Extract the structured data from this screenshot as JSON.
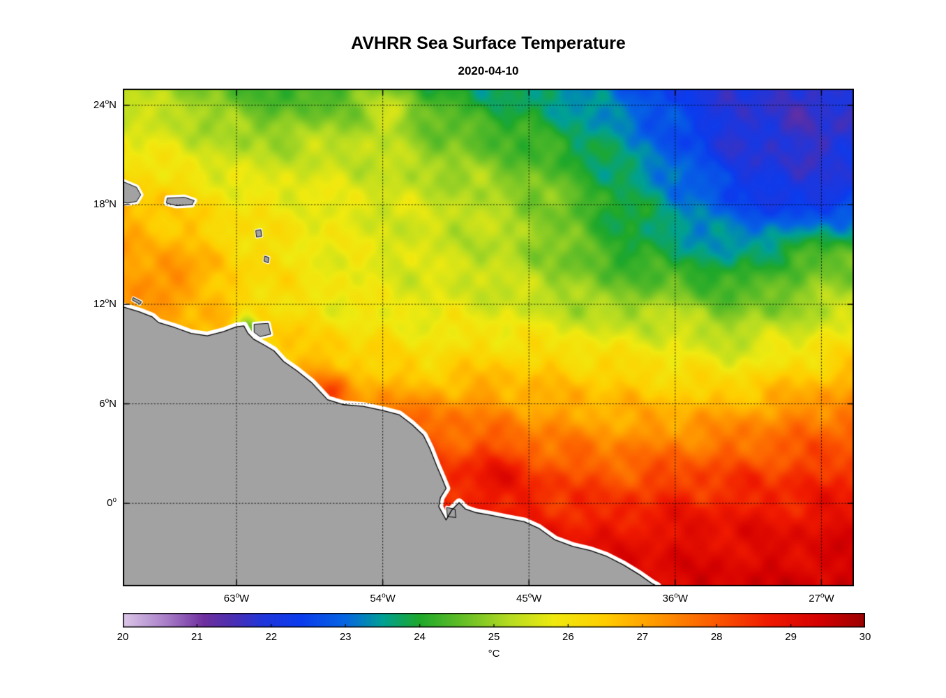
{
  "title": "AVHRR Sea Surface Temperature",
  "date": "2020-04-10",
  "axes": {
    "x_ticks": [
      {
        "deg": "63",
        "hem": "W",
        "lon": -63
      },
      {
        "deg": "54",
        "hem": "W",
        "lon": -54
      },
      {
        "deg": "45",
        "hem": "W",
        "lon": -45
      },
      {
        "deg": "36",
        "hem": "W",
        "lon": -36
      },
      {
        "deg": "27",
        "hem": "W",
        "lon": -27
      }
    ],
    "y_ticks": [
      {
        "deg": "24",
        "hem": "N",
        "lat": 24
      },
      {
        "deg": "18",
        "hem": "N",
        "lat": 18
      },
      {
        "deg": "12",
        "hem": "N",
        "lat": 12
      },
      {
        "deg": "6",
        "hem": "N",
        "lat": 6
      },
      {
        "deg": "0",
        "hem": "",
        "lat": 0
      }
    ]
  },
  "colorbar": {
    "min": 20,
    "max": 30,
    "tick_labels": [
      "20",
      "21",
      "22",
      "23",
      "24",
      "25",
      "26",
      "27",
      "28",
      "29",
      "30"
    ],
    "unit": "°C"
  },
  "chart_data": {
    "type": "heatmap",
    "title": "AVHRR Sea Surface Temperature",
    "subtitle": "2020-04-10",
    "units": "°C",
    "lon_range": [
      -70,
      -25
    ],
    "lat_range": [
      25,
      -5
    ],
    "value_range": [
      20,
      30
    ],
    "grid_lon_lines": [
      -63,
      -54,
      -45,
      -36,
      -27
    ],
    "grid_lat_lines": [
      24,
      18,
      12,
      6,
      0
    ],
    "grid_lons": [
      -70,
      -66.25,
      -62.5,
      -58.75,
      -55,
      -51.25,
      -47.5,
      -43.75,
      -40,
      -36.25,
      -32.5,
      -28.75,
      -25
    ],
    "grid_lats": [
      25,
      21.67,
      18.33,
      15,
      11.67,
      8.33,
      5,
      1.67,
      -1.67,
      -5
    ],
    "grid_values": [
      [
        25.2,
        25.0,
        24.4,
        24.1,
        24.6,
        24.1,
        23.8,
        23.5,
        23.0,
        22.4,
        21.9,
        21.7,
        21.7
      ],
      [
        25.8,
        25.5,
        25.1,
        25.2,
        25.3,
        24.9,
        24.5,
        24.1,
        23.6,
        22.8,
        21.9,
        21.7,
        21.8
      ],
      [
        26.8,
        26.3,
        25.9,
        25.8,
        25.6,
        25.4,
        25.2,
        24.8,
        24.0,
        23.4,
        22.6,
        22.0,
        22.3
      ],
      [
        27.0,
        26.8,
        26.3,
        25.9,
        25.7,
        25.5,
        25.3,
        24.9,
        24.2,
        23.8,
        23.5,
        24.2,
        24.6
      ],
      [
        27.2,
        26.9,
        26.4,
        26.0,
        25.8,
        25.7,
        25.6,
        25.4,
        25.0,
        25.2,
        24.7,
        25.0,
        25.4
      ],
      [
        27.4,
        27.2,
        27.0,
        26.8,
        26.5,
        26.2,
        26.5,
        26.4,
        26.3,
        26.0,
        25.8,
        26.2,
        26.5
      ],
      [
        27.5,
        27.5,
        27.5,
        27.5,
        27.6,
        27.8,
        27.5,
        27.2,
        27.0,
        27.0,
        27.2,
        27.5,
        27.8
      ],
      [
        28.0,
        28.0,
        28.0,
        28.0,
        28.0,
        28.2,
        28.5,
        28.3,
        28.0,
        28.2,
        28.3,
        28.4,
        28.5
      ],
      [
        28.5,
        28.5,
        28.5,
        28.5,
        28.5,
        28.6,
        28.8,
        28.8,
        28.8,
        29.0,
        29.0,
        29.0,
        29.2
      ],
      [
        28.8,
        28.8,
        28.8,
        28.8,
        28.8,
        28.9,
        29.0,
        29.2,
        29.2,
        29.3,
        29.3,
        29.4,
        29.4
      ]
    ],
    "anomalies": [
      {
        "lon": -62.35,
        "lat": 10.55,
        "r": 0.75,
        "d": -2.2
      },
      {
        "lon": -57.2,
        "lat": 6.9,
        "r": 1.1,
        "d": 0.9
      },
      {
        "lon": -47.3,
        "lat": 1.8,
        "r": 1.7,
        "d": 0.5
      },
      {
        "lon": -66.8,
        "lat": 13.7,
        "r": 1.2,
        "d": 0.7
      },
      {
        "lon": -53.3,
        "lat": 23.8,
        "r": 1.4,
        "d": 0.7
      }
    ],
    "colormap": [
      [
        20.0,
        "#DCC9E8"
      ],
      [
        20.6,
        "#A87CC8"
      ],
      [
        21.1,
        "#6E2F9E"
      ],
      [
        21.5,
        "#4A2FB4"
      ],
      [
        21.9,
        "#2036DC"
      ],
      [
        22.4,
        "#0B3CEE"
      ],
      [
        23.0,
        "#0566E2"
      ],
      [
        23.5,
        "#00A096"
      ],
      [
        24.0,
        "#1FA82A"
      ],
      [
        24.7,
        "#74C426"
      ],
      [
        25.2,
        "#B5DC22"
      ],
      [
        25.8,
        "#F0EA10"
      ],
      [
        26.5,
        "#FFCE00"
      ],
      [
        27.2,
        "#FF9800"
      ],
      [
        28.0,
        "#FC5800"
      ],
      [
        28.7,
        "#F01A00"
      ],
      [
        29.4,
        "#D40000"
      ],
      [
        30.0,
        "#9C0000"
      ]
    ],
    "land_color": "#A2A2A2",
    "land_coast": [
      [
        -70,
        11.85
      ],
      [
        -69.0,
        11.55
      ],
      [
        -68.2,
        11.25
      ],
      [
        -67.8,
        10.9
      ],
      [
        -66.8,
        10.6
      ],
      [
        -65.8,
        10.25
      ],
      [
        -64.8,
        10.1
      ],
      [
        -63.8,
        10.35
      ],
      [
        -63.0,
        10.65
      ],
      [
        -62.55,
        10.7
      ],
      [
        -62.3,
        10.25
      ],
      [
        -61.95,
        9.9
      ],
      [
        -61.3,
        9.55
      ],
      [
        -60.7,
        9.2
      ],
      [
        -60.1,
        8.55
      ],
      [
        -59.3,
        8.0
      ],
      [
        -58.4,
        7.3
      ],
      [
        -57.4,
        6.25
      ],
      [
        -56.4,
        5.95
      ],
      [
        -55.2,
        5.85
      ],
      [
        -54.0,
        5.6
      ],
      [
        -53.0,
        5.35
      ],
      [
        -52.2,
        4.75
      ],
      [
        -51.5,
        4.1
      ],
      [
        -51.1,
        3.3
      ],
      [
        -50.7,
        2.3
      ],
      [
        -50.35,
        1.5
      ],
      [
        -50.1,
        0.9
      ],
      [
        -50.45,
        0.35
      ],
      [
        -50.55,
        -0.2
      ],
      [
        -50.1,
        -1.0
      ],
      [
        -49.75,
        -0.4
      ],
      [
        -49.3,
        0.05
      ],
      [
        -48.9,
        -0.35
      ],
      [
        -48.3,
        -0.55
      ],
      [
        -47.4,
        -0.7
      ],
      [
        -46.4,
        -0.9
      ],
      [
        -45.3,
        -1.1
      ],
      [
        -44.4,
        -1.5
      ],
      [
        -43.4,
        -2.2
      ],
      [
        -42.3,
        -2.6
      ],
      [
        -41.2,
        -2.85
      ],
      [
        -40.2,
        -3.2
      ],
      [
        -39.2,
        -3.7
      ],
      [
        -38.2,
        -4.3
      ],
      [
        -37.4,
        -4.85
      ],
      [
        -37.1,
        -5.0
      ]
    ],
    "islands": [
      {
        "name": "hispaniola-east",
        "halo": 8,
        "points": [
          [
            -70,
            19.4
          ],
          [
            -69.15,
            19.05
          ],
          [
            -68.9,
            18.6
          ],
          [
            -69.15,
            18.2
          ],
          [
            -69.7,
            18.1
          ],
          [
            -70,
            18.15
          ]
        ]
      },
      {
        "name": "puerto-rico",
        "halo": 8,
        "points": [
          [
            -67.25,
            18.4
          ],
          [
            -66.2,
            18.45
          ],
          [
            -65.6,
            18.25
          ],
          [
            -65.75,
            18.0
          ],
          [
            -66.7,
            17.95
          ],
          [
            -67.3,
            18.1
          ]
        ]
      },
      {
        "name": "curacao",
        "halo": 4,
        "points": [
          [
            -69.35,
            12.4
          ],
          [
            -68.85,
            12.15
          ],
          [
            -68.95,
            12.0
          ],
          [
            -69.4,
            12.25
          ]
        ]
      },
      {
        "name": "guadeloupe",
        "halo": 4,
        "points": [
          [
            -61.8,
            16.45
          ],
          [
            -61.5,
            16.5
          ],
          [
            -61.45,
            16.1
          ],
          [
            -61.75,
            16.05
          ]
        ]
      },
      {
        "name": "martinique",
        "halo": 4,
        "points": [
          [
            -61.25,
            14.9
          ],
          [
            -61.0,
            14.82
          ],
          [
            -61.05,
            14.5
          ],
          [
            -61.3,
            14.6
          ]
        ]
      },
      {
        "name": "trinidad",
        "halo": 7,
        "points": [
          [
            -61.9,
            10.8
          ],
          [
            -61.05,
            10.85
          ],
          [
            -60.9,
            10.2
          ],
          [
            -61.55,
            10.05
          ],
          [
            -61.9,
            10.3
          ]
        ]
      },
      {
        "name": "marajo",
        "halo": 5,
        "points": [
          [
            -50.05,
            -0.25
          ],
          [
            -49.55,
            -0.35
          ],
          [
            -49.5,
            -0.85
          ],
          [
            -50.0,
            -0.8
          ]
        ]
      }
    ]
  }
}
